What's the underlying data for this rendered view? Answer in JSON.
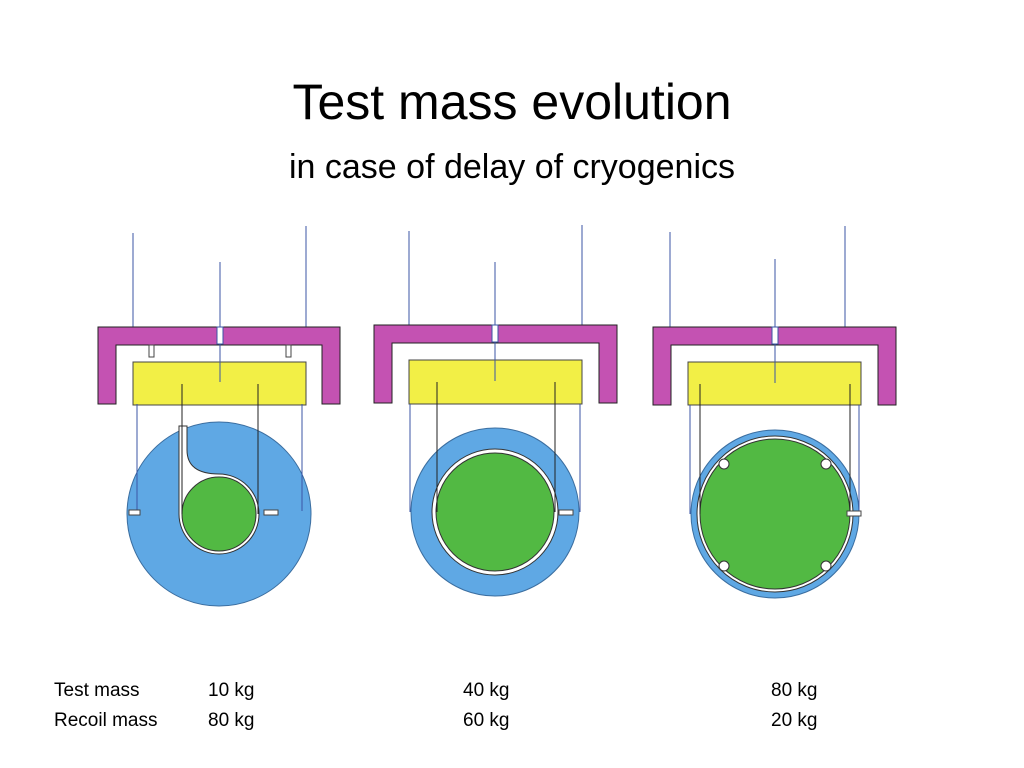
{
  "slide": {
    "title": "Test mass evolution",
    "subtitle": "in case of delay of cryogenics"
  },
  "colors": {
    "frame": "#c452b2",
    "recoil_block": "#f2ef46",
    "recoil_mass": "#5fa8e4",
    "test_mass": "#52b943",
    "wire": "#3b56a6"
  },
  "table": {
    "row_labels": [
      "Test mass",
      "Recoil mass"
    ],
    "configurations": [
      {
        "test_mass": "10 kg",
        "recoil_mass": "80 kg"
      },
      {
        "test_mass": "40 kg",
        "recoil_mass": "60 kg"
      },
      {
        "test_mass": "80 kg",
        "recoil_mass": "20 kg"
      }
    ]
  }
}
